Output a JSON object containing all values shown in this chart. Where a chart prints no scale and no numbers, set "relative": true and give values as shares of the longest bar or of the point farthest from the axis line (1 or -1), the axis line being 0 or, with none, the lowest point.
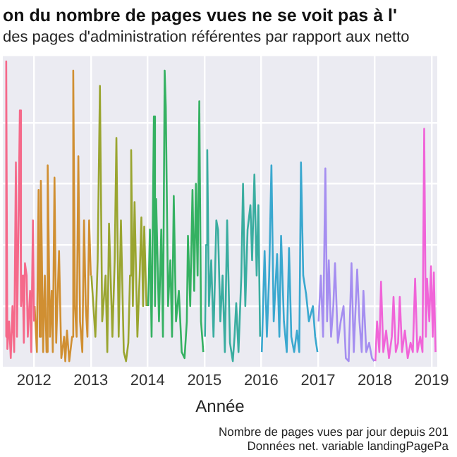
{
  "chart_data": {
    "type": "line",
    "relative": true,
    "title": "on du nombre de pages vues ne se voit pas à l'",
    "subtitle": "des pages d'administration référentes par rapport aux netto",
    "xlabel": "Année",
    "annotations": [
      "Nombre de pages vues par jour depuis 201",
      "Données net. variable landingPagePa"
    ],
    "grid": true,
    "legend": false,
    "marker": "none",
    "line_style": "solid",
    "xlim": [
      2011.45,
      2019.1
    ],
    "xticks": [
      2012,
      2013,
      2014,
      2015,
      2016,
      2017,
      2018,
      2019
    ],
    "series": [
      {
        "color": "#f5698a",
        "x": [
          2011.5,
          2011.51,
          2011.53,
          2011.56,
          2011.59,
          2011.62,
          2011.65,
          2011.68,
          2011.7,
          2011.75,
          2011.77,
          2011.8,
          2011.82,
          2011.84,
          2011.87,
          2011.89,
          2011.93,
          2011.95,
          2011.98,
          2012.0
        ],
        "values": [
          0.1,
          1.0,
          0.06,
          0.15,
          0.03,
          0.2,
          0.05,
          0.67,
          0.1,
          0.84,
          0.2,
          0.3,
          0.08,
          0.34,
          0.3,
          0.1,
          0.25,
          0.05,
          0.48,
          0.15
        ]
      },
      {
        "color": "#d08f32",
        "x": [
          2012.01,
          2012.05,
          2012.08,
          2012.1,
          2012.12,
          2012.16,
          2012.19,
          2012.22,
          2012.24,
          2012.28,
          2012.31,
          2012.33,
          2012.36,
          2012.39,
          2012.44,
          2012.48,
          2012.53,
          2012.55,
          2012.58,
          2012.62,
          2012.67,
          2012.69,
          2012.72,
          2012.75,
          2012.78,
          2012.81,
          2012.85,
          2012.88,
          2012.91,
          2012.94,
          2012.97,
          2013.0
        ],
        "values": [
          0.2,
          0.05,
          0.58,
          0.1,
          0.61,
          0.05,
          0.3,
          0.05,
          0.66,
          0.1,
          0.25,
          0.05,
          0.62,
          0.08,
          0.38,
          0.03,
          0.1,
          0.02,
          0.12,
          0.02,
          0.1,
          0.97,
          0.2,
          0.1,
          0.69,
          0.15,
          0.05,
          0.48,
          0.2,
          0.1,
          0.48,
          0.3
        ]
      },
      {
        "color": "#9aa530",
        "x": [
          2013.01,
          2013.08,
          2013.12,
          2013.16,
          2013.2,
          2013.26,
          2013.29,
          2013.32,
          2013.38,
          2013.42,
          2013.45,
          2013.49,
          2013.53,
          2013.58,
          2013.62,
          2013.66,
          2013.69,
          2013.71,
          2013.74,
          2013.77,
          2013.82,
          2013.86,
          2013.89,
          2013.92,
          2013.94,
          2013.98
        ],
        "values": [
          0.3,
          0.1,
          0.35,
          0.92,
          0.15,
          0.3,
          0.05,
          0.47,
          0.1,
          0.35,
          0.75,
          0.1,
          0.48,
          0.05,
          0.02,
          0.08,
          0.3,
          0.71,
          0.2,
          0.54,
          0.1,
          0.3,
          0.49,
          0.2,
          0.46,
          0.2
        ]
      },
      {
        "color": "#35b162",
        "x": [
          2014.01,
          2014.04,
          2014.07,
          2014.11,
          2014.13,
          2014.15,
          2014.2,
          2014.24,
          2014.27,
          2014.3,
          2014.32,
          2014.36,
          2014.4,
          2014.43,
          2014.46,
          2014.5,
          2014.55,
          2014.6,
          2014.65,
          2014.69,
          2014.71,
          2014.75,
          2014.79,
          2014.82,
          2014.85,
          2014.88,
          2014.91,
          2014.94,
          2014.98
        ],
        "values": [
          0.2,
          0.45,
          0.1,
          0.82,
          0.2,
          0.55,
          0.15,
          0.45,
          0.1,
          0.97,
          0.85,
          0.2,
          0.35,
          0.1,
          0.56,
          0.15,
          0.25,
          0.05,
          0.03,
          0.15,
          0.43,
          0.2,
          0.58,
          0.25,
          0.6,
          0.3,
          0.87,
          0.15,
          0.05
        ]
      },
      {
        "color": "#3aada0",
        "x": [
          2015.01,
          2015.03,
          2015.05,
          2015.08,
          2015.12,
          2015.16,
          2015.21,
          2015.24,
          2015.28,
          2015.32,
          2015.36,
          2015.4,
          2015.45,
          2015.5,
          2015.53,
          2015.56,
          2015.6,
          2015.65,
          2015.68,
          2015.72,
          2015.76,
          2015.81,
          2015.84,
          2015.88,
          2015.92,
          2015.95,
          2015.98
        ],
        "values": [
          0.1,
          0.4,
          0.71,
          0.2,
          0.35,
          0.1,
          0.48,
          0.45,
          0.15,
          0.3,
          0.05,
          0.48,
          0.08,
          0.02,
          0.1,
          0.21,
          0.05,
          0.3,
          0.6,
          0.2,
          0.45,
          0.53,
          0.35,
          0.63,
          0.3,
          0.53,
          0.1
        ]
      },
      {
        "color": "#3aa8cf",
        "x": [
          2016.01,
          2016.06,
          2016.1,
          2016.14,
          2016.18,
          2016.22,
          2016.28,
          2016.32,
          2016.35,
          2016.4,
          2016.45,
          2016.49,
          2016.53,
          2016.58,
          2016.63,
          2016.67,
          2016.7,
          2016.74,
          2016.79,
          2016.84,
          2016.91,
          2016.95,
          2016.99
        ],
        "values": [
          0.05,
          0.38,
          0.1,
          0.3,
          0.66,
          0.15,
          0.37,
          0.1,
          0.43,
          0.15,
          0.05,
          0.39,
          0.1,
          0.05,
          0.12,
          0.05,
          0.67,
          0.3,
          0.24,
          0.15,
          0.2,
          0.1,
          0.05
        ]
      },
      {
        "color": "#a58ef0",
        "x": [
          2017.01,
          2017.05,
          2017.09,
          2017.13,
          2017.16,
          2017.19,
          2017.23,
          2017.27,
          2017.3,
          2017.35,
          2017.4,
          2017.45,
          2017.49,
          2017.54,
          2017.59,
          2017.63,
          2017.69,
          2017.73,
          2017.77,
          2017.8,
          2017.85,
          2017.9,
          2017.95,
          2017.99
        ],
        "values": [
          0.15,
          0.3,
          0.1,
          0.65,
          0.15,
          0.35,
          0.1,
          0.2,
          0.34,
          0.08,
          0.15,
          0.2,
          0.03,
          0.02,
          0.34,
          0.05,
          0.32,
          0.15,
          0.05,
          0.25,
          0.05,
          0.08,
          0.03,
          0.02
        ]
      },
      {
        "color": "#f064d8",
        "x": [
          2018.01,
          2018.04,
          2018.08,
          2018.11,
          2018.15,
          2018.2,
          2018.25,
          2018.3,
          2018.33,
          2018.37,
          2018.41,
          2018.44,
          2018.48,
          2018.53,
          2018.58,
          2018.63,
          2018.67,
          2018.71,
          2018.75,
          2018.8,
          2018.84,
          2018.87,
          2018.9,
          2018.92,
          2018.96,
          2018.99,
          2019.02,
          2019.04,
          2019.07
        ],
        "values": [
          0.02,
          0.15,
          0.05,
          0.28,
          0.05,
          0.12,
          0.03,
          0.1,
          0.23,
          0.05,
          0.08,
          0.23,
          0.05,
          0.12,
          0.03,
          0.08,
          0.05,
          0.29,
          0.05,
          0.1,
          0.05,
          0.78,
          0.1,
          0.29,
          0.15,
          0.33,
          0.1,
          0.31,
          0.05
        ]
      }
    ]
  }
}
